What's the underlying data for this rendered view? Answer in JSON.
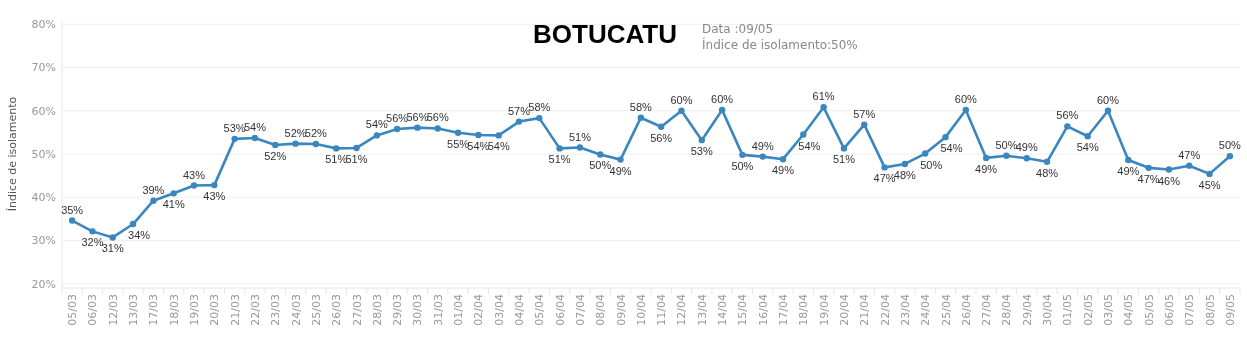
{
  "chart_data": {
    "type": "line",
    "title": "BOTUCATU",
    "annotations": [
      "Data :09/05",
      "Índice de isolamento:50%"
    ],
    "ylabel": "Índice de isolamento",
    "categories": [
      "05/03",
      "06/03",
      "12/03",
      "13/03",
      "17/03",
      "18/03",
      "19/03",
      "20/03",
      "21/03",
      "22/03",
      "23/03",
      "24/03",
      "25/03",
      "26/03",
      "27/03",
      "28/03",
      "29/03",
      "30/03",
      "31/03",
      "01/04",
      "02/04",
      "03/04",
      "04/04",
      "05/04",
      "06/04",
      "07/04",
      "08/04",
      "09/04",
      "10/04",
      "11/04",
      "12/04",
      "13/04",
      "14/04",
      "15/04",
      "16/04",
      "17/04",
      "18/04",
      "19/04",
      "20/04",
      "21/04",
      "22/04",
      "23/04",
      "24/04",
      "25/04",
      "26/04",
      "27/04",
      "28/04",
      "29/04",
      "30/04",
      "01/05",
      "02/05",
      "03/05",
      "04/05",
      "05/05",
      "06/05",
      "07/05",
      "08/05",
      "09/05"
    ],
    "series": [
      {
        "color": "#3a87c0",
        "values": [
          34.6,
          32.1,
          30.7,
          33.8,
          39.2,
          40.9,
          42.7,
          42.8,
          53.5,
          53.7,
          52.1,
          52.4,
          52.3,
          51.3,
          51.4,
          54.3,
          55.8,
          56.1,
          55.9,
          54.9,
          54.4,
          54.3,
          57.5,
          58.3,
          51.3,
          51.5,
          49.9,
          48.7,
          58.4,
          56.3,
          60.0,
          53.2,
          60.2,
          49.8,
          49.4,
          48.8,
          54.5,
          60.8,
          51.3,
          56.8,
          46.9,
          47.7,
          50.1,
          53.9,
          60.2,
          49.1,
          49.6,
          49.0,
          48.2,
          56.4,
          54.1,
          60.0,
          48.6,
          46.8,
          46.4,
          47.3,
          45.4,
          49.5
        ],
        "value_labels": [
          "35%",
          "32%",
          "31%",
          "34%",
          "39%",
          "41%",
          "43%",
          "43%",
          "53%",
          "54%",
          "52%",
          "52%",
          "52%",
          "51%",
          "51%",
          "54%",
          "56%",
          "56%",
          "56%",
          "55%",
          "54%",
          "54%",
          "57%",
          "58%",
          "51%",
          "51%",
          "50%",
          "49%",
          "58%",
          "56%",
          "60%",
          "53%",
          "60%",
          "50%",
          "49%",
          "49%",
          "54%",
          "61%",
          "51%",
          "57%",
          "47%",
          "48%",
          "50%",
          "54%",
          "60%",
          "49%",
          "50%",
          "49%",
          "48%",
          "56%",
          "54%",
          "60%",
          "49%",
          "47%",
          "46%",
          "47%",
          "45%",
          "50%"
        ]
      }
    ],
    "ylim": [
      19,
      81
    ],
    "yticks": [
      {
        "value": 20,
        "label": "20%"
      },
      {
        "value": 30,
        "label": "30%"
      },
      {
        "value": 40,
        "label": "40%"
      },
      {
        "value": 50,
        "label": "50%"
      },
      {
        "value": 60,
        "label": "60%"
      },
      {
        "value": 70,
        "label": "70%"
      },
      {
        "value": 80,
        "label": "80%"
      }
    ],
    "grid": "y",
    "marker": "circle"
  }
}
